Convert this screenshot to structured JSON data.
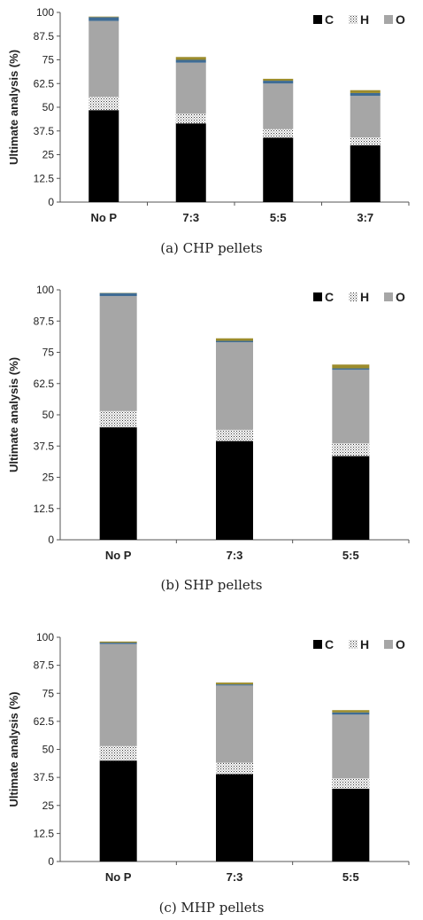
{
  "colors": {
    "C": "#000000",
    "H": "#ffffff",
    "O": "#a6a6a6",
    "N": "#3f6c94",
    "S": "#9c8c2c",
    "axis": "#555555"
  },
  "chart_data": [
    {
      "type": "bar",
      "stacked": true,
      "caption": "(a) CHP pellets",
      "ylabel": "Ultimate analysis (%)",
      "ylim": [
        0,
        100
      ],
      "yticks": [
        "0",
        "12.5",
        "25",
        "37.5",
        "50",
        "62.5",
        "75",
        "87.5",
        "100"
      ],
      "categories": [
        "No P",
        "7:3",
        "5:5",
        "3:7"
      ],
      "legend": [
        "C",
        "H",
        "O"
      ],
      "legend_position": "top-right",
      "series": [
        {
          "name": "C",
          "values": [
            48.5,
            41.5,
            34,
            30
          ]
        },
        {
          "name": "H",
          "values": [
            7,
            5,
            4.5,
            4
          ]
        },
        {
          "name": "O",
          "values": [
            40,
            27,
            24,
            22
          ]
        },
        {
          "values": [
            2,
            1.5,
            1.5,
            1.5
          ]
        },
        {
          "values": [
            0.3,
            1.5,
            1,
            1.5
          ]
        }
      ]
    },
    {
      "type": "bar",
      "stacked": true,
      "caption": "(b) SHP pellets",
      "ylabel": "Ultimate analysis (%)",
      "ylim": [
        0,
        100
      ],
      "yticks": [
        "0",
        "12.5",
        "25",
        "37.5",
        "50",
        "62.5",
        "75",
        "87.5",
        "100"
      ],
      "categories": [
        "No P",
        "7:3",
        "5:5"
      ],
      "legend": [
        "C",
        "H",
        "O"
      ],
      "legend_position": "top-right",
      "series": [
        {
          "name": "C",
          "values": [
            45,
            39.5,
            33.5
          ]
        },
        {
          "name": "H",
          "values": [
            6.5,
            4.5,
            5
          ]
        },
        {
          "name": "O",
          "values": [
            46,
            35,
            29.5
          ]
        },
        {
          "values": [
            1.2,
            0.6,
            0.6
          ]
        },
        {
          "values": [
            0.1,
            1,
            1.5
          ]
        }
      ]
    },
    {
      "type": "bar",
      "stacked": true,
      "caption": "(c) MHP pellets",
      "ylabel": "Ultimate analysis (%)",
      "ylim": [
        0,
        100
      ],
      "yticks": [
        "0",
        "12.5",
        "25",
        "37.5",
        "50",
        "62.5",
        "75",
        "87.5",
        "100"
      ],
      "categories": [
        "No P",
        "7:3",
        "5:5"
      ],
      "legend": [
        "C",
        "H",
        "O"
      ],
      "legend_position": "top-right",
      "series": [
        {
          "name": "C",
          "values": [
            45,
            39,
            32.5
          ]
        },
        {
          "name": "H",
          "values": [
            6.5,
            5,
            4.5
          ]
        },
        {
          "name": "O",
          "values": [
            45.5,
            34.5,
            28.5
          ]
        },
        {
          "values": [
            0.6,
            0.5,
            1
          ]
        },
        {
          "values": [
            0.5,
            0.8,
            1
          ]
        }
      ]
    }
  ]
}
